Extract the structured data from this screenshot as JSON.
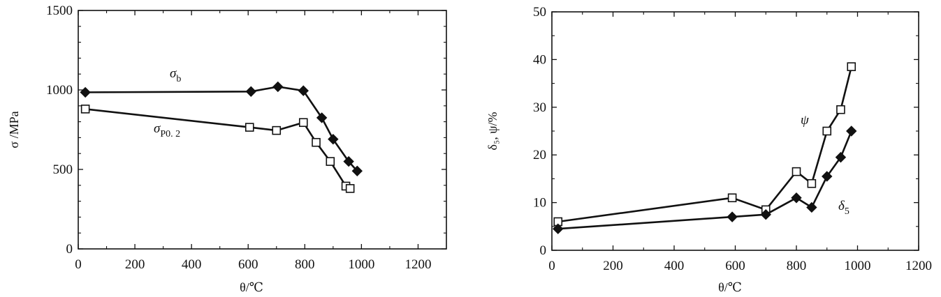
{
  "colors": {
    "line": "#111111",
    "filled_marker": "#111111",
    "open_marker_fill": "#ffffff"
  },
  "chart_data": [
    {
      "type": "line",
      "xlabel": "θ/℃",
      "ylabel": "σ /MPa",
      "xlim": [
        0,
        1300
      ],
      "ylim": [
        0,
        1500
      ],
      "xticks": [
        "0",
        "200",
        "400",
        "600",
        "800",
        "1000",
        "1200"
      ],
      "yticks": [
        "0",
        "500",
        "1000",
        "1500"
      ],
      "grid": false,
      "series": [
        {
          "name": "σb",
          "symbol": "σ",
          "subscript": "b",
          "marker": "filled-diamond",
          "x": [
            25,
            610,
            705,
            795,
            860,
            900,
            955,
            985
          ],
          "y": [
            985,
            990,
            1020,
            995,
            825,
            690,
            550,
            490
          ]
        },
        {
          "name": "σP0.2",
          "symbol": "σ",
          "subscript": "P0. 2",
          "marker": "open-square",
          "x": [
            25,
            605,
            700,
            795,
            840,
            890,
            945,
            960
          ],
          "y": [
            880,
            765,
            745,
            795,
            670,
            550,
            395,
            380
          ]
        }
      ]
    },
    {
      "type": "line",
      "xlabel": "θ/℃",
      "ylabel": "δ₅, ψ/%",
      "xlim": [
        0,
        1200
      ],
      "ylim": [
        0,
        50
      ],
      "xticks": [
        "0",
        "200",
        "400",
        "600",
        "800",
        "1000",
        "1200"
      ],
      "yticks": [
        "0",
        "10",
        "20",
        "30",
        "40",
        "50"
      ],
      "grid": false,
      "series": [
        {
          "name": "ψ",
          "symbol": "ψ",
          "subscript": "",
          "marker": "open-square",
          "x": [
            20,
            590,
            700,
            800,
            850,
            900,
            945,
            980
          ],
          "y": [
            6,
            11,
            8.5,
            16.5,
            14,
            25,
            29.5,
            38.5
          ]
        },
        {
          "name": "δ5",
          "symbol": "δ",
          "subscript": "5",
          "marker": "filled-diamond",
          "x": [
            20,
            590,
            700,
            800,
            850,
            900,
            945,
            980
          ],
          "y": [
            4.5,
            7,
            7.5,
            11,
            9,
            15.5,
            19.5,
            25
          ]
        }
      ]
    }
  ]
}
